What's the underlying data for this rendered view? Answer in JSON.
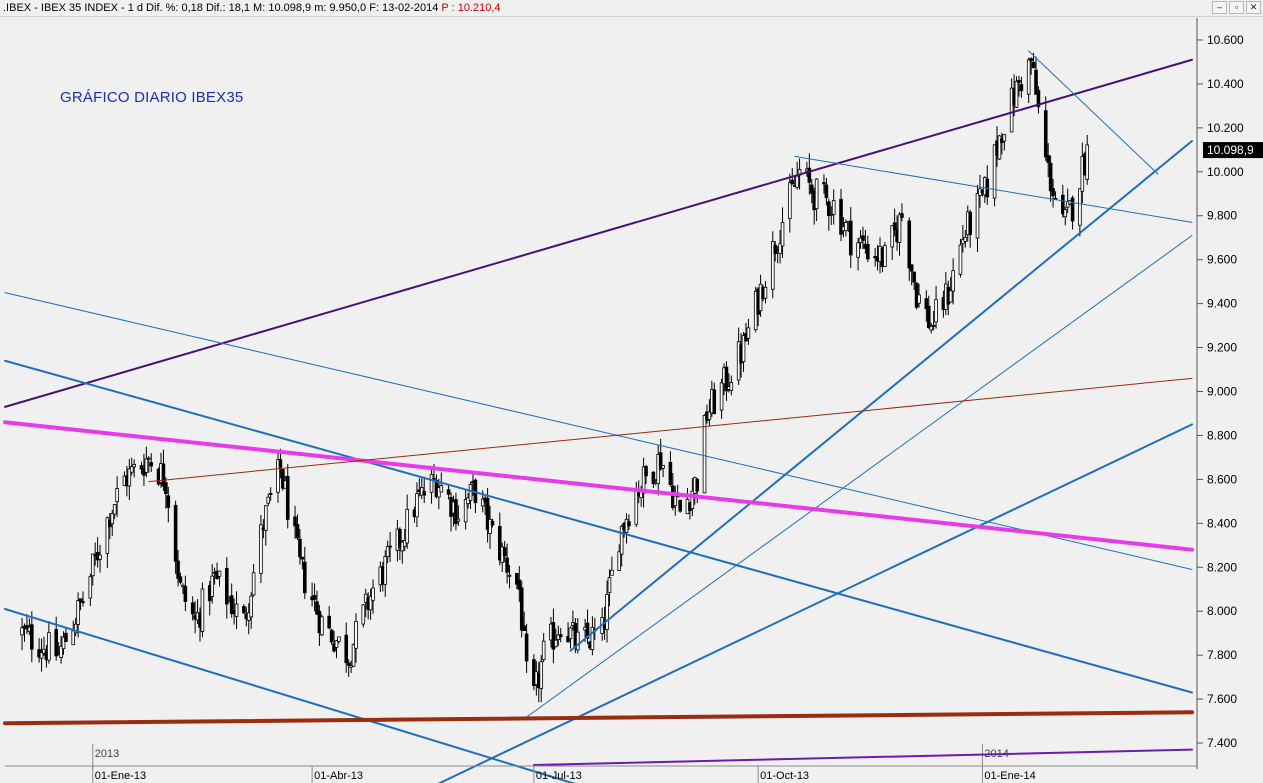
{
  "header": {
    "main": ".IBEX - IBEX 35 INDEX - 1 d Dif. %: 0,18 Dif.: 18,1 M: 10.098,9 m: 9.950,0 F: 13-02-2014",
    "p": "P : 10.210,4"
  },
  "window": {
    "minimize_icon": "minimize-icon",
    "restore_icon": "restore-icon",
    "close_icon": "close-icon"
  },
  "colors": {
    "background": "#f0f0f0",
    "candle": "#000000",
    "price_box": "#000000",
    "annotation": "#1a2eb8"
  },
  "chart_data": {
    "type": "candlestick",
    "annotation": "GRÁFICO DIARIO IBEX35",
    "ylim": [
      7300,
      10700
    ],
    "xlim": [
      "2012-11-26",
      "2014-03-28"
    ],
    "y_ticks": [
      7400,
      7600,
      7800,
      8000,
      8200,
      8400,
      8600,
      8800,
      9000,
      9200,
      9400,
      9600,
      9800,
      10000,
      10200,
      10400,
      10600
    ],
    "y_tick_labels": [
      "7.400",
      "7.600",
      "7.800",
      "8.000",
      "8.200",
      "8.400",
      "8.600",
      "8.800",
      "9.000",
      "9.200",
      "9.400",
      "9.600",
      "9.800",
      "10.000",
      "10.200",
      "10.400",
      "10.600"
    ],
    "x_ticks": [
      "2013-01-01",
      "2013-04-01",
      "2013-07-01",
      "2013-10-01",
      "2014-01-01"
    ],
    "x_tick_labels": [
      "01-Ene-13",
      "01-Abr-13",
      "01-Jul-13",
      "01-Oct-13",
      "01-Ene-14"
    ],
    "year_markers": [
      {
        "date": "2013-01-01",
        "label": "2013"
      },
      {
        "date": "2014-01-01",
        "label": "2014"
      }
    ],
    "last_price": 10098.9,
    "last_price_label": "10.098,9",
    "price_anchors": [
      [
        "2012-12-03",
        7900
      ],
      [
        "2012-12-18",
        7800
      ],
      [
        "2012-12-28",
        8050
      ],
      [
        "2013-01-08",
        8450
      ],
      [
        "2013-01-14",
        8600
      ],
      [
        "2013-01-24",
        8700
      ],
      [
        "2013-01-31",
        8600
      ],
      [
        "2013-02-06",
        8100
      ],
      [
        "2013-02-12",
        7950
      ],
      [
        "2013-02-20",
        8150
      ],
      [
        "2013-03-04",
        7950
      ],
      [
        "2013-03-12",
        8400
      ],
      [
        "2013-03-19",
        8650
      ],
      [
        "2013-03-27",
        8200
      ],
      [
        "2013-04-05",
        7950
      ],
      [
        "2013-04-16",
        7800
      ],
      [
        "2013-04-26",
        8100
      ],
      [
        "2013-05-06",
        8300
      ],
      [
        "2013-05-14",
        8500
      ],
      [
        "2013-05-22",
        8600
      ],
      [
        "2013-05-31",
        8450
      ],
      [
        "2013-06-07",
        8550
      ],
      [
        "2013-06-14",
        8350
      ],
      [
        "2013-06-25",
        8100
      ],
      [
        "2013-06-28",
        7700
      ],
      [
        "2013-07-01",
        7600
      ],
      [
        "2013-07-05",
        7800
      ],
      [
        "2013-07-12",
        7950
      ],
      [
        "2013-07-19",
        7850
      ],
      [
        "2013-07-29",
        7900
      ],
      [
        "2013-08-05",
        8350
      ],
      [
        "2013-08-12",
        8550
      ],
      [
        "2013-08-22",
        8700
      ],
      [
        "2013-08-30",
        8450
      ],
      [
        "2013-09-06",
        8600
      ],
      [
        "2013-09-10",
        8900
      ],
      [
        "2013-09-18",
        9050
      ],
      [
        "2013-09-25",
        9200
      ],
      [
        "2013-10-03",
        9500
      ],
      [
        "2013-10-10",
        9750
      ],
      [
        "2013-10-18",
        10000
      ],
      [
        "2013-10-24",
        9900
      ],
      [
        "2013-11-01",
        9850
      ],
      [
        "2013-11-08",
        9700
      ],
      [
        "2013-11-15",
        9650
      ],
      [
        "2013-11-22",
        9600
      ],
      [
        "2013-11-29",
        9800
      ],
      [
        "2013-12-05",
        9450
      ],
      [
        "2013-12-11",
        9300
      ],
      [
        "2013-12-18",
        9450
      ],
      [
        "2013-12-24",
        9700
      ],
      [
        "2014-01-02",
        9900
      ],
      [
        "2014-01-09",
        10200
      ],
      [
        "2014-01-16",
        10400
      ],
      [
        "2014-01-21",
        10500
      ],
      [
        "2014-01-27",
        10050
      ],
      [
        "2014-02-03",
        9750
      ],
      [
        "2014-02-07",
        9850
      ],
      [
        "2014-02-13",
        10100
      ]
    ],
    "trendlines": [
      {
        "from": [
          "2012-11-26",
          8930
        ],
        "to": [
          "2014-03-28",
          10510
        ],
        "color": "#4b0f78",
        "width": 2
      },
      {
        "from": [
          "2013-10-16",
          10070
        ],
        "to": [
          "2014-03-28",
          9770
        ],
        "color": "#1f6fc1",
        "width": 1
      },
      {
        "from": [
          "2014-01-20",
          10550
        ],
        "to": [
          "2014-03-14",
          9990
        ],
        "color": "#1f6fc1",
        "width": 1
      },
      {
        "from": [
          "2013-07-16",
          7820
        ],
        "to": [
          "2014-03-28",
          10140
        ],
        "color": "#1f6fc1",
        "width": 2
      },
      {
        "from": [
          "2013-06-27",
          7510
        ],
        "to": [
          "2014-03-28",
          9710
        ],
        "color": "#1f6fc1",
        "width": 1
      },
      {
        "from": [
          "2012-11-26",
          9450
        ],
        "to": [
          "2014-03-28",
          8190
        ],
        "color": "#1f6fc1",
        "width": 1
      },
      {
        "from": [
          "2012-11-26",
          9140
        ],
        "to": [
          "2014-03-28",
          7630
        ],
        "color": "#1f6fc1",
        "width": 2
      },
      {
        "from": [
          "2012-11-26",
          8010
        ],
        "to": [
          "2013-07-22",
          7200
        ],
        "color": "#1f6fc1",
        "width": 2
      },
      {
        "from": [
          "2013-05-20",
          7200
        ],
        "to": [
          "2014-03-28",
          8850
        ],
        "color": "#1f6fc1",
        "width": 2
      },
      {
        "from": [
          "2012-11-26",
          8860
        ],
        "to": [
          "2014-03-28",
          8280
        ],
        "color": "#e83ae8",
        "width": 4
      },
      {
        "from": [
          "2013-01-24",
          8590
        ],
        "to": [
          "2014-03-28",
          9060
        ],
        "color": "#9a2c10",
        "width": 1
      },
      {
        "from": [
          "2012-11-26",
          7490
        ],
        "to": [
          "2014-03-28",
          7540
        ],
        "color": "#9a2c10",
        "width": 4
      },
      {
        "from": [
          "2013-07-01",
          7300
        ],
        "to": [
          "2014-03-28",
          7370
        ],
        "color": "#6a1bb0",
        "width": 2
      }
    ]
  }
}
